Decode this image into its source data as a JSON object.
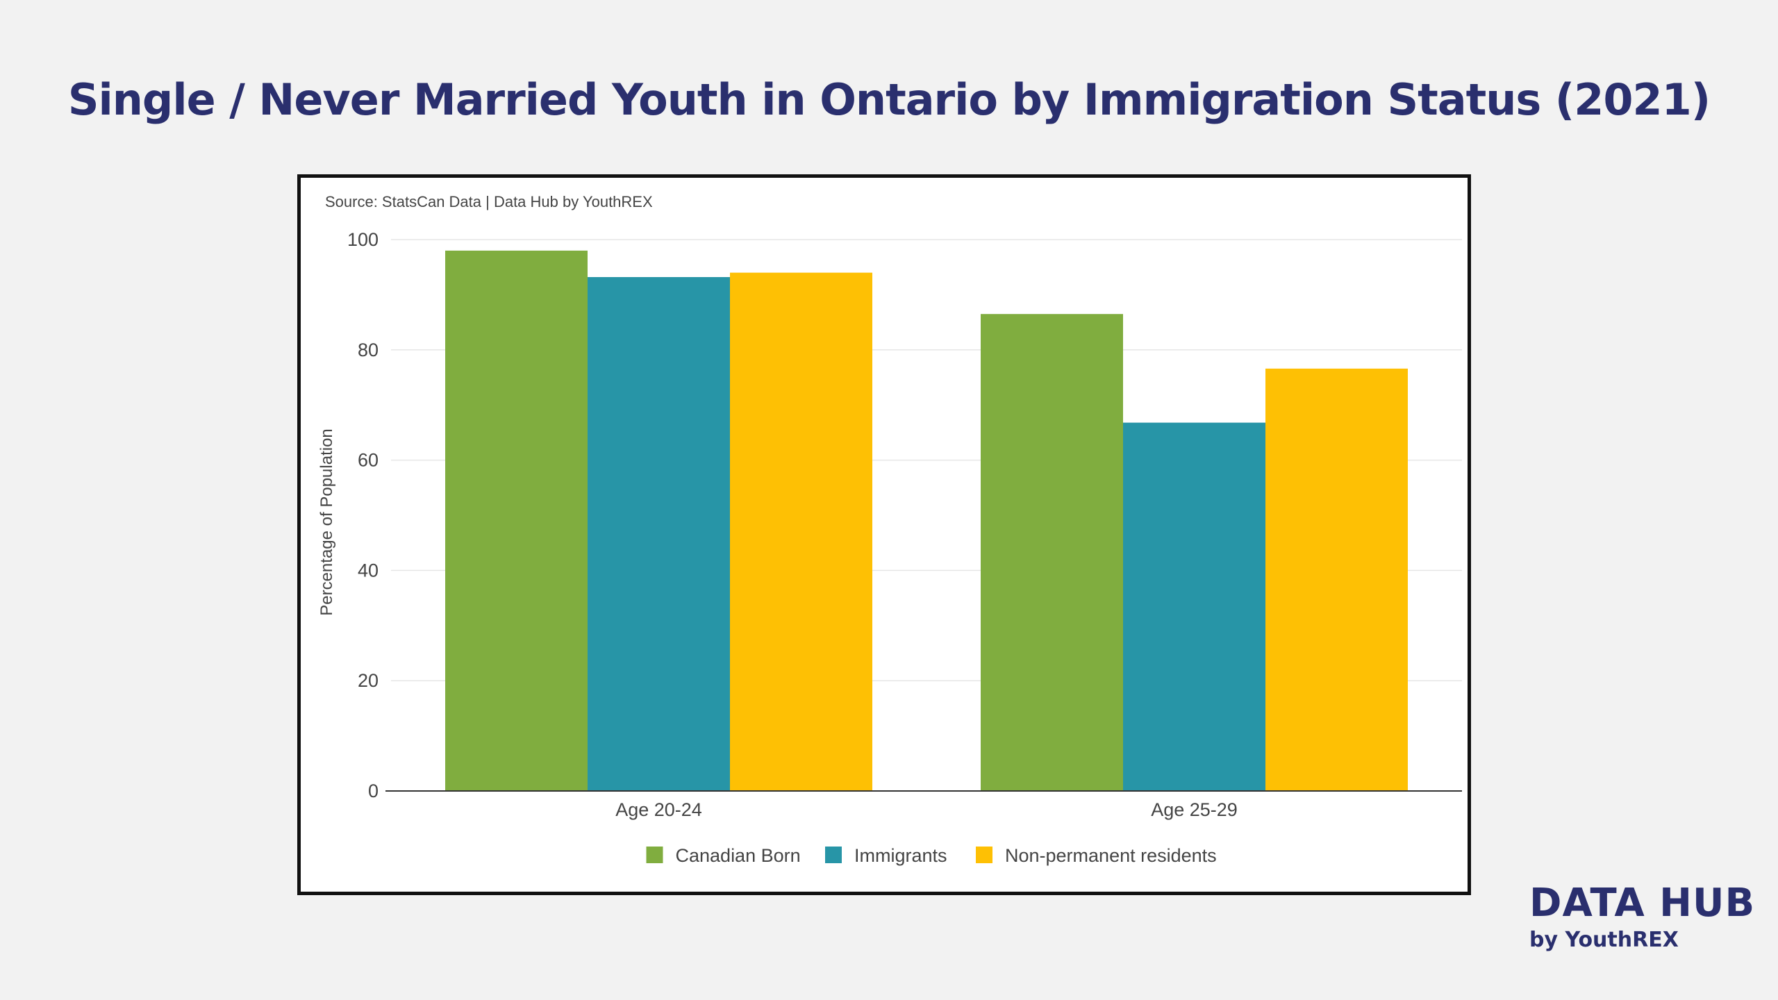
{
  "page": {
    "title": "Single / Never Married Youth in Ontario by Immigration Status (2021)"
  },
  "brand": {
    "title": "DATA HUB",
    "subtitle": "by YouthREX"
  },
  "chart_data": {
    "type": "bar",
    "source": "Source: StatsCan Data | Data Hub by YouthREX",
    "categories": [
      "Age 20-24",
      "Age 25-29"
    ],
    "series": [
      {
        "name": "Canadian Born",
        "color": "#80ad3f",
        "values": [
          98.0,
          86.5
        ]
      },
      {
        "name": "Immigrants",
        "color": "#2795a7",
        "values": [
          93.2,
          66.8
        ]
      },
      {
        "name": "Non-permanent residents",
        "color": "#fec004",
        "values": [
          94.0,
          76.6
        ]
      }
    ],
    "xlabel": "",
    "ylabel": "Percentage of Population",
    "ylim": [
      0,
      100
    ],
    "yticks": [
      0,
      20,
      40,
      60,
      80,
      100
    ],
    "grid": true,
    "legend_position": "bottom"
  }
}
